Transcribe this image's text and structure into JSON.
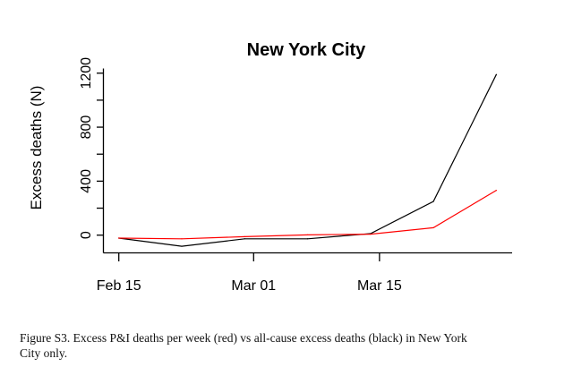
{
  "chart_data": {
    "type": "line",
    "title": "New York City",
    "xlabel": "",
    "ylabel": "Excess deaths (N)",
    "x": [
      "2020-02-15",
      "2020-02-22",
      "2020-02-29",
      "2020-03-07",
      "2020-03-14",
      "2020-03-21",
      "2020-03-28"
    ],
    "x_ticks": [
      {
        "date": "2020-02-15",
        "label": "Feb 15"
      },
      {
        "date": "2020-03-01",
        "label": "Mar 01"
      },
      {
        "date": "2020-03-15",
        "label": "Mar 15"
      }
    ],
    "y_ticks": [
      0,
      400,
      800,
      1200
    ],
    "ylim": [
      -100,
      1200
    ],
    "grid": false,
    "series": [
      {
        "color": "#000000",
        "values": [
          -22,
          -82,
          -27,
          -27,
          11,
          250,
          1190
        ]
      },
      {
        "color": "#ff0000",
        "values": [
          -22,
          -27,
          -11,
          2,
          7,
          55,
          332
        ]
      }
    ]
  },
  "caption": {
    "line1": "Figure S3. Excess P&I deaths per week (red) vs all-cause excess deaths (black) in New York",
    "line2": "City only."
  }
}
